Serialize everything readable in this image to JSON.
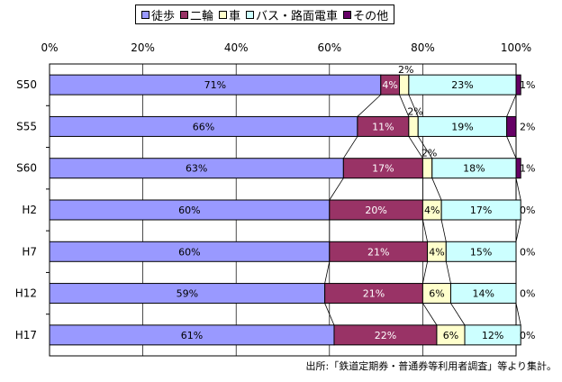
{
  "chart_data": {
    "type": "bar",
    "stacked": true,
    "orientation": "horizontal",
    "percent_stacked": true,
    "categories": [
      "S50",
      "S55",
      "S60",
      "H2",
      "H7",
      "H12",
      "H17"
    ],
    "series": [
      {
        "name": "徒歩",
        "color": "#9999ff",
        "values": [
          71,
          66,
          63,
          60,
          60,
          59,
          61
        ],
        "labels": [
          "71%",
          "66%",
          "63%",
          "60%",
          "60%",
          "59%",
          "61%"
        ]
      },
      {
        "name": "二輪",
        "color": "#993366",
        "values": [
          4,
          11,
          17,
          20,
          21,
          21,
          22
        ],
        "labels": [
          "4%",
          "11%",
          "17%",
          "20%",
          "21%",
          "21%",
          "22%"
        ]
      },
      {
        "name": "車",
        "color": "#ffffcc",
        "values": [
          2,
          2,
          2,
          4,
          4,
          6,
          6
        ],
        "labels": [
          "2%",
          "2%",
          "2%",
          "4%",
          "4%",
          "6%",
          "6%"
        ]
      },
      {
        "name": "バス・路面電車",
        "color": "#ccffff",
        "values": [
          23,
          19,
          18,
          17,
          15,
          14,
          12
        ],
        "labels": [
          "23%",
          "19%",
          "18%",
          "17%",
          "15%",
          "14%",
          "12%"
        ]
      },
      {
        "name": "その他",
        "color": "#660066",
        "values": [
          1,
          2,
          1,
          0,
          0,
          0,
          0
        ],
        "labels": [
          "1%",
          "2%",
          "1%",
          "0%",
          "0%",
          "0%",
          "0%"
        ]
      }
    ],
    "xlim": [
      0,
      100
    ],
    "x_ticks": [
      "0%",
      "20%",
      "40%",
      "60%",
      "80%",
      "100%"
    ],
    "grid": true,
    "legend_position": "top"
  },
  "source_note": "出所:「鉄道定期券・普通券等利用者調査」等より集計。"
}
